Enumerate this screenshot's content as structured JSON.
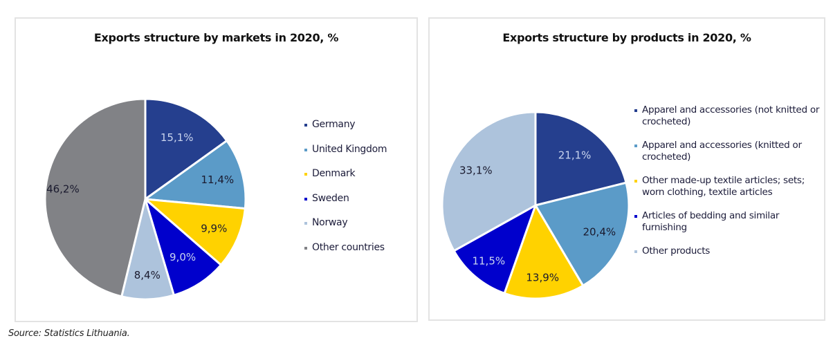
{
  "source": "Source: Statistics Lithuania.",
  "chart_data": [
    {
      "type": "pie",
      "title": "Exports structure by markets in 2020, %",
      "categories": [
        "Germany",
        "United Kingdom",
        "Denmark",
        "Sweden",
        "Norway",
        "Other countries"
      ],
      "values": [
        15.1,
        11.4,
        9.9,
        9.0,
        8.4,
        46.2
      ],
      "labels": [
        "15,1%",
        "11,4%",
        "9,9%",
        "9,0%",
        "8,4%",
        "46,2%"
      ],
      "colors": [
        "#253F8E",
        "#5B9BC8",
        "#FFD200",
        "#0000CC",
        "#ADC3DC",
        "#818286"
      ],
      "label_colors": [
        "#C9D4EE",
        "#1A1A2E",
        "#1A1A2E",
        "#C9D4EE",
        "#1A1A2E",
        "#1A1A2E"
      ],
      "start_angle_deg": 0,
      "direction": "clockwise",
      "legend_position": "right"
    },
    {
      "type": "pie",
      "title": "Exports structure by products in 2020, %",
      "categories": [
        "Apparel and accessories (not knitted or crocheted)",
        "Apparel and accessories (knitted or crocheted)",
        "Other made-up textile articles; sets; worn clothing, textile articles",
        "Articles of bedding and similar furnishing",
        "Other products"
      ],
      "values": [
        21.1,
        20.4,
        13.9,
        11.5,
        33.1
      ],
      "labels": [
        "21,1%",
        "20,4%",
        "13,9%",
        "11,5%",
        "33,1%"
      ],
      "colors": [
        "#253F8E",
        "#5B9BC8",
        "#FFD200",
        "#0000CC",
        "#ADC3DC"
      ],
      "label_colors": [
        "#C9D4EE",
        "#1A1A2E",
        "#1A1A2E",
        "#C9D4EE",
        "#1A1A2E"
      ],
      "start_angle_deg": 0,
      "direction": "clockwise",
      "legend_position": "right"
    }
  ]
}
